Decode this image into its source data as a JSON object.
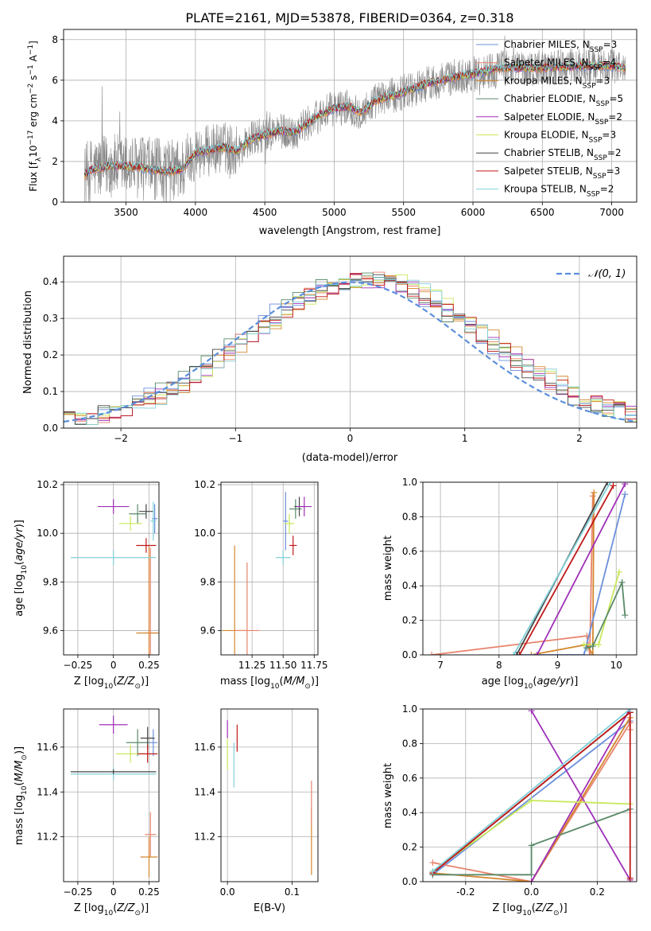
{
  "title": "PLATE=2161, MJD=53878, FIBERID=0364, z=0.318",
  "colors": {
    "Chabrier MILES": "#6b8fdc",
    "Salpeter MILES": "#e8836c",
    "Kroupa MILES": "#d4862d",
    "Chabrier ELODIE": "#5a8a6a",
    "Salpeter ELODIE": "#a030b8",
    "Kroupa ELODIE": "#c8e85a",
    "Chabrier STELIB": "#444444",
    "Salpeter STELIB": "#c01818",
    "Kroupa STELIB": "#80d0d8",
    "data": "#888888",
    "normal": "#5b8fdc",
    "pink": "#e888c0"
  },
  "chart_data": [
    {
      "type": "line",
      "id": "spectrum",
      "xlabel": "wavelength [Angstrom, rest frame]",
      "ylabel_text": "Flux [f",
      "ylabel_parts": [
        "Flux [f",
        "λ",
        "10",
        "−17",
        " erg cm",
        "−2",
        " s",
        "−1",
        " A",
        "−1",
        "]"
      ],
      "xlim": [
        3050,
        7180
      ],
      "ylim": [
        0,
        8.5
      ],
      "xticks": [
        3500,
        4000,
        4500,
        5000,
        5500,
        6000,
        6500,
        7000
      ],
      "yticks": [
        0,
        2,
        4,
        6,
        8
      ],
      "continuum_anchors": [
        [
          3200,
          1.3
        ],
        [
          3250,
          1.6
        ],
        [
          3400,
          1.8
        ],
        [
          3600,
          1.7
        ],
        [
          3700,
          1.6
        ],
        [
          3800,
          1.5
        ],
        [
          3900,
          1.6
        ],
        [
          4000,
          2.4
        ],
        [
          4200,
          2.7
        ],
        [
          4300,
          2.5
        ],
        [
          4400,
          3.1
        ],
        [
          4500,
          3.3
        ],
        [
          4600,
          3.5
        ],
        [
          4700,
          3.4
        ],
        [
          4800,
          3.8
        ],
        [
          4900,
          4.3
        ],
        [
          5000,
          4.6
        ],
        [
          5100,
          4.7
        ],
        [
          5200,
          4.4
        ],
        [
          5300,
          5.0
        ],
        [
          5500,
          5.4
        ],
        [
          5700,
          5.9
        ],
        [
          5900,
          6.2
        ],
        [
          6000,
          6.3
        ],
        [
          6200,
          6.6
        ],
        [
          6500,
          6.6
        ],
        [
          6800,
          6.7
        ],
        [
          7000,
          6.7
        ],
        [
          7100,
          6.6
        ]
      ],
      "legend": [
        {
          "label": "Chabrier MILES, N",
          "sub": "SSP",
          "suffix": "=3"
        },
        {
          "label": "Salpeter MILES, N",
          "sub": "SSP",
          "suffix": "=4"
        },
        {
          "label": "Kroupa MILES, N",
          "sub": "SSP",
          "suffix": "=3"
        },
        {
          "label": "Chabrier ELODIE, N",
          "sub": "SSP",
          "suffix": "=5"
        },
        {
          "label": "Salpeter ELODIE, N",
          "sub": "SSP",
          "suffix": "=2"
        },
        {
          "label": "Kroupa ELODIE, N",
          "sub": "SSP",
          "suffix": "=3"
        },
        {
          "label": "Chabrier STELIB, N",
          "sub": "SSP",
          "suffix": "=2"
        },
        {
          "label": "Salpeter STELIB, N",
          "sub": "SSP",
          "suffix": "=3"
        },
        {
          "label": "Kroupa STELIB, N",
          "sub": "SSP",
          "suffix": "=2"
        }
      ]
    },
    {
      "type": "line",
      "id": "residuals",
      "xlabel": "(data-model)/error",
      "ylabel": "Normed distribution",
      "xlim": [
        -2.5,
        2.5
      ],
      "ylim": [
        0,
        0.47
      ],
      "xticks": [
        -2,
        -1,
        0,
        1,
        2
      ],
      "yticks": [
        0.0,
        0.1,
        0.2,
        0.3,
        0.4
      ],
      "legend": "𝒩(0, 1)",
      "bin_edges_start": -2.5,
      "bin_width": 0.1
    },
    {
      "type": "scatter",
      "id": "age_vs_Z",
      "xlabel": "Z [log10(Z/Z⊙)]",
      "ylabel": "age  [log10(age/yr)]",
      "xlim": [
        -0.35,
        0.32
      ],
      "ylim": [
        9.5,
        10.21
      ],
      "xticks": [
        -0.25,
        0.0,
        0.25
      ],
      "yticks": [
        9.6,
        9.8,
        10.0,
        10.2
      ],
      "points": [
        {
          "model": "Chabrier MILES",
          "x": 0.29,
          "y": 10.06,
          "xerr": 0.02,
          "yerr": 0.06
        },
        {
          "model": "Salpeter MILES",
          "x": 0.26,
          "y": 9.59,
          "xerr": 0.04,
          "yerr": 0.35
        },
        {
          "model": "Kroupa MILES",
          "x": 0.25,
          "y": 9.59,
          "xerr": 0.09,
          "yerr": 0.36
        },
        {
          "model": "Chabrier ELODIE",
          "x": 0.17,
          "y": 10.08,
          "xerr": 0.06,
          "yerr": 0.04
        },
        {
          "model": "Salpeter ELODIE",
          "x": 0.0,
          "y": 10.11,
          "xerr": 0.11,
          "yerr": 0.03
        },
        {
          "model": "Kroupa ELODIE",
          "x": 0.12,
          "y": 10.04,
          "xerr": 0.08,
          "yerr": 0.03
        },
        {
          "model": "Chabrier STELIB",
          "x": 0.23,
          "y": 10.09,
          "xerr": 0.05,
          "yerr": 0.03
        },
        {
          "model": "Salpeter STELIB",
          "x": 0.23,
          "y": 9.95,
          "xerr": 0.07,
          "yerr": 0.03
        },
        {
          "model": "Kroupa STELIB",
          "x": 0.0,
          "y": 9.9,
          "xerr": 0.3,
          "yerr": 0.03
        },
        {
          "model": "Kroupa STELIB",
          "x": 0.28,
          "y": 10.05,
          "xerr": 0.02,
          "yerr": 0.08
        }
      ]
    },
    {
      "type": "scatter",
      "id": "age_vs_mass",
      "xlabel": "mass [log10(M/M⊙)]",
      "xlim": [
        11.0,
        11.78
      ],
      "ylim": [
        9.5,
        10.21
      ],
      "xticks": [
        11.25,
        11.5,
        11.75
      ],
      "xticklabels": [
        "11.25",
        "11.50",
        "11.75"
      ],
      "yticks": [
        9.6,
        9.8,
        10.0,
        10.2
      ],
      "points": [
        {
          "model": "Kroupa MILES",
          "x": 11.11,
          "y": 9.6,
          "xerr": 0.1,
          "yerr": 0.35
        },
        {
          "model": "Salpeter MILES",
          "x": 11.21,
          "y": 9.6,
          "xerr": 0.1,
          "yerr": 0.28
        },
        {
          "model": "Kroupa STELIB",
          "x": 11.5,
          "y": 9.9,
          "xerr": 0.06,
          "yerr": 0.03
        },
        {
          "model": "Chabrier MILES",
          "x": 11.52,
          "y": 10.05,
          "xerr": 0.02,
          "yerr": 0.12
        },
        {
          "model": "Kroupa ELODIE",
          "x": 11.55,
          "y": 10.04,
          "xerr": 0.04,
          "yerr": 0.04
        },
        {
          "model": "Salpeter STELIB",
          "x": 11.58,
          "y": 9.95,
          "xerr": 0.03,
          "yerr": 0.04
        },
        {
          "model": "Chabrier ELODIE",
          "x": 11.6,
          "y": 10.1,
          "xerr": 0.05,
          "yerr": 0.04
        },
        {
          "model": "Chabrier STELIB",
          "x": 11.63,
          "y": 10.11,
          "xerr": 0.04,
          "yerr": 0.04
        },
        {
          "model": "Salpeter ELODIE",
          "x": 11.67,
          "y": 10.11,
          "xerr": 0.06,
          "yerr": 0.04
        }
      ]
    },
    {
      "type": "line",
      "id": "massweight_vs_age",
      "xlabel": "age  [log10(age/yr)]",
      "ylabel": "mass weight",
      "xlim": [
        6.7,
        10.35
      ],
      "ylim": [
        0,
        1.0
      ],
      "xticks": [
        7,
        8,
        9,
        10
      ],
      "yticks": [
        0.0,
        0.2,
        0.4,
        0.6,
        0.8,
        1.0
      ],
      "series": [
        {
          "model": "Salpeter MILES",
          "x": [
            6.85,
            9.5,
            9.55,
            9.6
          ],
          "y": [
            0.0,
            0.11,
            0.0,
            0.92
          ]
        },
        {
          "model": "Kroupa MILES",
          "x": [
            8.55,
            9.5,
            9.6,
            9.62
          ],
          "y": [
            0.0,
            0.06,
            0.0,
            0.94
          ]
        },
        {
          "model": "Chabrier MILES",
          "x": [
            8.3,
            9.45,
            10.15
          ],
          "y": [
            0.0,
            0.0,
            0.93
          ]
        },
        {
          "model": "Salpeter ELODIE",
          "x": [
            8.65,
            10.15
          ],
          "y": [
            0.0,
            0.99
          ]
        },
        {
          "model": "Salpeter STELIB",
          "x": [
            8.35,
            9.95
          ],
          "y": [
            0.0,
            0.98
          ]
        },
        {
          "model": "Chabrier STELIB",
          "x": [
            8.3,
            9.85
          ],
          "y": [
            0.0,
            1.0
          ]
        },
        {
          "model": "Kroupa STELIB",
          "x": [
            8.25,
            9.9
          ],
          "y": [
            0.0,
            1.0
          ]
        },
        {
          "model": "Kroupa ELODIE",
          "x": [
            9.45,
            9.7,
            10.05
          ],
          "y": [
            0.06,
            0.06,
            0.48
          ]
        },
        {
          "model": "Chabrier ELODIE",
          "x": [
            9.5,
            9.6,
            10.1,
            10.15
          ],
          "y": [
            0.04,
            0.05,
            0.42,
            0.23
          ]
        }
      ]
    },
    {
      "type": "scatter",
      "id": "mass_vs_Z",
      "xlabel": "Z [log10(Z/Z⊙)]",
      "ylabel": "mass [log10(M/M⊙)]",
      "xlim": [
        -0.35,
        0.32
      ],
      "ylim": [
        11.0,
        11.77
      ],
      "xticks": [
        -0.25,
        0.0,
        0.25
      ],
      "yticks": [
        11.2,
        11.4,
        11.6
      ],
      "points": [
        {
          "model": "Salpeter ELODIE",
          "x": 0.0,
          "y": 11.7,
          "xerr": 0.1,
          "yerr": 0.04
        },
        {
          "model": "Chabrier MILES",
          "x": 0.28,
          "y": 11.62,
          "xerr": 0.03,
          "yerr": 0.06
        },
        {
          "model": "Chabrier ELODIE",
          "x": 0.17,
          "y": 11.62,
          "xerr": 0.08,
          "yerr": 0.06
        },
        {
          "model": "Chabrier STELIB",
          "x": 0.24,
          "y": 11.64,
          "xerr": 0.05,
          "yerr": 0.05
        },
        {
          "model": "Kroupa ELODIE",
          "x": 0.12,
          "y": 11.57,
          "xerr": 0.1,
          "yerr": 0.04
        },
        {
          "model": "Salpeter STELIB",
          "x": 0.24,
          "y": 11.57,
          "xerr": 0.07,
          "yerr": 0.04
        },
        {
          "model": "Kroupa STELIB",
          "x": 0.0,
          "y": 11.48,
          "xerr": 0.3,
          "yerr": 0.03
        },
        {
          "model": "Chabrier STELIB",
          "x": 0.0,
          "y": 11.49,
          "xerr": 0.3,
          "yerr": 0.01
        },
        {
          "model": "Salpeter MILES",
          "x": 0.26,
          "y": 11.21,
          "xerr": 0.04,
          "yerr": 0.1
        },
        {
          "model": "Kroupa MILES",
          "x": 0.25,
          "y": 11.11,
          "xerr": 0.06,
          "yerr": 0.09
        }
      ]
    },
    {
      "type": "scatter",
      "id": "mass_vs_ebv",
      "xlabel": "E(B-V)",
      "xlim": [
        -0.01,
        0.14
      ],
      "ylim": [
        11.0,
        11.77
      ],
      "xticks": [
        0.0,
        0.1
      ],
      "yticks": [
        11.2,
        11.4,
        11.6
      ],
      "points": [
        {
          "model": "Salpeter ELODIE",
          "x": 0.0,
          "y": 11.68,
          "yerr": 0.04
        },
        {
          "model": "Kroupa ELODIE",
          "x": 0.0,
          "y": 11.57,
          "yerr": 0.07
        },
        {
          "model": "Kroupa STELIB",
          "x": 0.01,
          "y": 11.52,
          "yerr": 0.1
        },
        {
          "model": "Salpeter STELIB",
          "x": 0.015,
          "y": 11.64,
          "yerr": 0.06
        },
        {
          "model": "Kroupa MILES",
          "x": 0.13,
          "y": 11.18,
          "yerr": 0.15
        },
        {
          "model": "Salpeter MILES",
          "x": 0.13,
          "y": 11.35,
          "yerr": 0.1
        }
      ]
    },
    {
      "type": "line",
      "id": "massweight_vs_Z",
      "xlabel": "Z [log10(Z/Z⊙)]",
      "ylabel": "mass weight",
      "xlim": [
        -0.33,
        0.32
      ],
      "ylim": [
        0,
        1.0
      ],
      "xticks": [
        -0.2,
        0.0,
        0.2
      ],
      "yticks": [
        0.0,
        0.2,
        0.4,
        0.6,
        0.8,
        1.0
      ],
      "series": [
        {
          "model": "Chabrier MILES",
          "x": [
            -0.3,
            0.3
          ],
          "y": [
            0.04,
            0.93
          ]
        },
        {
          "model": "Salpeter MILES",
          "x": [
            -0.3,
            0.0,
            0.3,
            0.3
          ],
          "y": [
            0.11,
            0.0,
            0.92,
            0.88
          ]
        },
        {
          "model": "Kroupa MILES",
          "x": [
            -0.3,
            0.0,
            0.3
          ],
          "y": [
            0.05,
            0.0,
            0.95
          ]
        },
        {
          "model": "Chabrier ELODIE",
          "x": [
            -0.3,
            0.0,
            0.0,
            0.3
          ],
          "y": [
            0.04,
            0.04,
            0.21,
            0.42
          ]
        },
        {
          "model": "Salpeter ELODIE",
          "x": [
            0.0,
            0.3
          ],
          "y": [
            0.99,
            0.01
          ]
        },
        {
          "model": "Salpeter ELODIE",
          "x": [
            0.0,
            0.3
          ],
          "y": [
            0.0,
            1.0
          ]
        },
        {
          "model": "Kroupa ELODIE",
          "x": [
            -0.3,
            0.0,
            0.3
          ],
          "y": [
            0.06,
            0.47,
            0.45
          ]
        },
        {
          "model": "Chabrier STELIB",
          "x": [
            -0.3,
            0.3
          ],
          "y": [
            0.05,
            0.98
          ]
        },
        {
          "model": "Salpeter STELIB",
          "x": [
            -0.3,
            0.3,
            0.3
          ],
          "y": [
            0.05,
            0.98,
            0.02
          ]
        },
        {
          "model": "Kroupa STELIB",
          "x": [
            -0.3,
            0.3
          ],
          "y": [
            0.06,
            1.0
          ]
        }
      ]
    }
  ]
}
